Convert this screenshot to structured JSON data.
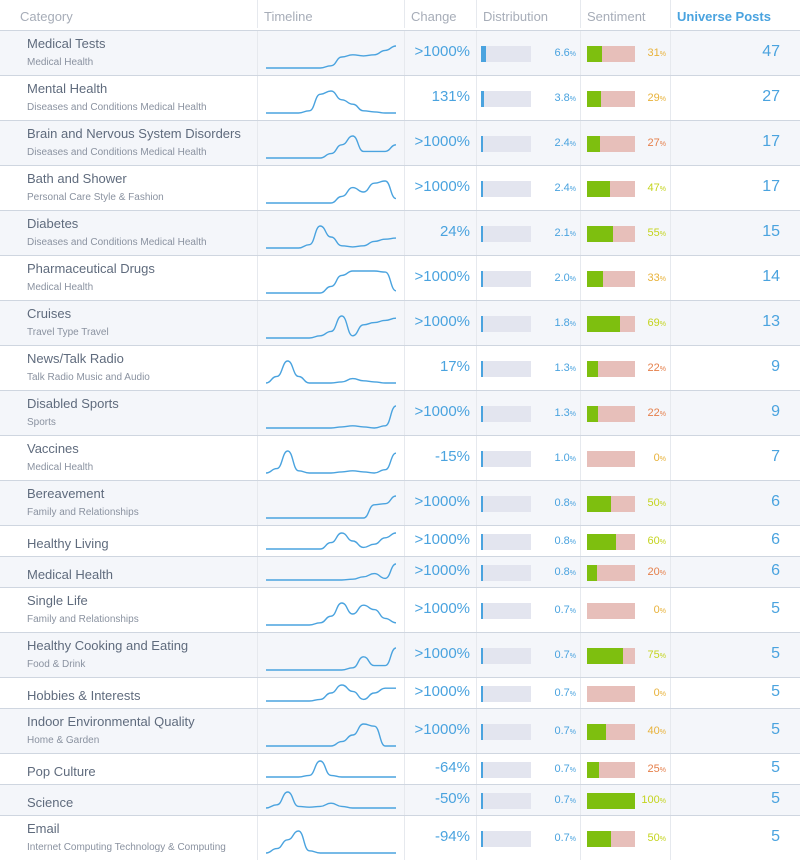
{
  "header": {
    "category": "Category",
    "timeline": "Timeline",
    "change": "Change",
    "distribution": "Distribution",
    "sentiment": "Sentiment",
    "universe_posts": "Universe Posts"
  },
  "colors": {
    "accent": "#4aa3df",
    "positive": "#7ebf0f",
    "negative": "#e7bfba",
    "sent_high": "#c4d41e",
    "sent_mid": "#e8b23a",
    "sent_low": "#e57f4a"
  },
  "rows": [
    {
      "name": "Medical Tests",
      "sub": "Medical Health",
      "change": ">1000%",
      "dist": "6.6",
      "dist_value": 6.6,
      "sent": "31",
      "sent_value": 31,
      "posts": "47",
      "spark": [
        0,
        0,
        0,
        0,
        0,
        0,
        0.1,
        0.5,
        0.6,
        0.55,
        0.6,
        0.8,
        1.0
      ]
    },
    {
      "name": "Mental Health",
      "sub": "Diseases and Conditions Medical Health",
      "change": "131%",
      "dist": "3.8",
      "dist_value": 3.8,
      "sent": "29",
      "sent_value": 29,
      "posts": "27",
      "spark": [
        0,
        0,
        0,
        0,
        0.1,
        0.85,
        1.0,
        0.6,
        0.4,
        0.1,
        0.05,
        0,
        0
      ]
    },
    {
      "name": "Brain and Nervous System Disorders",
      "sub": "Diseases and Conditions Medical Health",
      "change": ">1000%",
      "dist": "2.4",
      "dist_value": 2.4,
      "sent": "27",
      "sent_value": 27,
      "posts": "17",
      "spark": [
        0,
        0,
        0,
        0,
        0,
        0,
        0.2,
        0.6,
        1.0,
        0.3,
        0.3,
        0.3,
        0.6
      ]
    },
    {
      "name": "Bath and Shower",
      "sub": "Personal Care Style & Fashion",
      "change": ">1000%",
      "dist": "2.4",
      "dist_value": 2.4,
      "sent": "47",
      "sent_value": 47,
      "posts": "17",
      "spark": [
        0,
        0,
        0,
        0,
        0,
        0,
        0,
        0.3,
        0.7,
        0.5,
        0.9,
        1.0,
        0.2
      ]
    },
    {
      "name": "Diabetes",
      "sub": "Diseases and Conditions Medical Health",
      "change": "24%",
      "dist": "2.1",
      "dist_value": 2.1,
      "sent": "55",
      "sent_value": 55,
      "posts": "15",
      "spark": [
        0,
        0,
        0,
        0,
        0.15,
        1.0,
        0.5,
        0.1,
        0.05,
        0.1,
        0.3,
        0.4,
        0.45
      ]
    },
    {
      "name": "Pharmaceutical Drugs",
      "sub": "Medical Health",
      "change": ">1000%",
      "dist": "2.0",
      "dist_value": 2.0,
      "sent": "33",
      "sent_value": 33,
      "posts": "14",
      "spark": [
        0,
        0,
        0,
        0,
        0,
        0,
        0.3,
        0.8,
        1.0,
        1.0,
        1.0,
        0.95,
        0.1
      ]
    },
    {
      "name": "Cruises",
      "sub": "Travel Type Travel",
      "change": ">1000%",
      "dist": "1.8",
      "dist_value": 1.8,
      "sent": "69",
      "sent_value": 69,
      "posts": "13",
      "spark": [
        0,
        0,
        0,
        0,
        0,
        0.1,
        0.3,
        1.0,
        0.1,
        0.6,
        0.7,
        0.8,
        0.9
      ]
    },
    {
      "name": "News/Talk Radio",
      "sub": "Talk Radio Music and Audio",
      "change": "17%",
      "dist": "1.3",
      "dist_value": 1.3,
      "sent": "22",
      "sent_value": 22,
      "posts": "9",
      "spark": [
        0,
        0.3,
        1.0,
        0.3,
        0,
        0,
        0,
        0.05,
        0.2,
        0.1,
        0.05,
        0,
        0
      ]
    },
    {
      "name": "Disabled Sports",
      "sub": "Sports",
      "change": ">1000%",
      "dist": "1.3",
      "dist_value": 1.3,
      "sent": "22",
      "sent_value": 22,
      "posts": "9",
      "spark": [
        0,
        0,
        0,
        0,
        0,
        0,
        0,
        0.05,
        0.1,
        0.05,
        0,
        0.1,
        1.0
      ]
    },
    {
      "name": "Vaccines",
      "sub": "Medical Health",
      "change": "-15%",
      "dist": "1.0",
      "dist_value": 1.0,
      "sent": "0",
      "sent_value": 0,
      "posts": "7",
      "spark": [
        0,
        0.2,
        1.0,
        0.1,
        0,
        0,
        0,
        0.05,
        0.1,
        0.05,
        0,
        0.15,
        0.9
      ]
    },
    {
      "name": "Bereavement",
      "sub": "Family and Relationships",
      "change": ">1000%",
      "dist": "0.8",
      "dist_value": 0.8,
      "sent": "50",
      "sent_value": 50,
      "posts": "6",
      "spark": [
        0,
        0,
        0,
        0,
        0,
        0,
        0,
        0,
        0,
        0,
        0.6,
        0.65,
        1.0
      ]
    },
    {
      "name": "Healthy Living",
      "sub": "",
      "change": ">1000%",
      "dist": "0.8",
      "dist_value": 0.8,
      "sent": "60",
      "sent_value": 60,
      "posts": "6",
      "spark": [
        0,
        0,
        0,
        0,
        0,
        0,
        0.4,
        1.0,
        0.5,
        0.1,
        0.3,
        0.7,
        1.0
      ]
    },
    {
      "name": "Medical Health",
      "sub": "",
      "change": ">1000%",
      "dist": "0.8",
      "dist_value": 0.8,
      "sent": "20",
      "sent_value": 20,
      "posts": "6",
      "spark": [
        0,
        0,
        0,
        0,
        0,
        0,
        0,
        0,
        0.05,
        0.2,
        0.4,
        0.1,
        1.0
      ]
    },
    {
      "name": "Single Life",
      "sub": "Family and Relationships",
      "change": ">1000%",
      "dist": "0.7",
      "dist_value": 0.7,
      "sent": "0",
      "sent_value": 0,
      "posts": "5",
      "spark": [
        0,
        0,
        0,
        0,
        0,
        0.1,
        0.4,
        1.0,
        0.5,
        0.9,
        0.7,
        0.3,
        0.1
      ]
    },
    {
      "name": "Healthy Cooking and Eating",
      "sub": "Food & Drink",
      "change": ">1000%",
      "dist": "0.7",
      "dist_value": 0.7,
      "sent": "75",
      "sent_value": 75,
      "posts": "5",
      "spark": [
        0,
        0,
        0,
        0,
        0,
        0,
        0,
        0,
        0.1,
        0.6,
        0.2,
        0.2,
        1.0
      ]
    },
    {
      "name": "Hobbies & Interests",
      "sub": "",
      "change": ">1000%",
      "dist": "0.7",
      "dist_value": 0.7,
      "sent": "0",
      "sent_value": 0,
      "posts": "5",
      "spark": [
        0,
        0,
        0,
        0,
        0,
        0.1,
        0.5,
        1.0,
        0.6,
        0.1,
        0.5,
        0.8,
        0.8
      ]
    },
    {
      "name": "Indoor Environmental Quality",
      "sub": "Home & Garden",
      "change": ">1000%",
      "dist": "0.7",
      "dist_value": 0.7,
      "sent": "40",
      "sent_value": 40,
      "posts": "5",
      "spark": [
        0,
        0,
        0,
        0,
        0,
        0,
        0,
        0.2,
        0.5,
        1.0,
        0.9,
        0,
        0
      ]
    },
    {
      "name": "Pop Culture",
      "sub": "",
      "change": "-64%",
      "dist": "0.7",
      "dist_value": 0.7,
      "sent": "25",
      "sent_value": 25,
      "posts": "5",
      "spark": [
        0,
        0,
        0,
        0,
        0.1,
        1.0,
        0.1,
        0,
        0,
        0,
        0,
        0,
        0
      ]
    },
    {
      "name": "Science",
      "sub": "",
      "change": "-50%",
      "dist": "0.7",
      "dist_value": 0.7,
      "sent": "100",
      "sent_value": 100,
      "posts": "5",
      "spark": [
        0,
        0.2,
        1.0,
        0.1,
        0.05,
        0.1,
        0.3,
        0.1,
        0,
        0,
        0,
        0,
        0
      ]
    },
    {
      "name": "Email",
      "sub": "Internet Computing Technology & Computing",
      "change": "-94%",
      "dist": "0.7",
      "dist_value": 0.7,
      "sent": "50",
      "sent_value": 50,
      "posts": "5",
      "spark": [
        0,
        0.2,
        0.6,
        1.0,
        0.1,
        0,
        0,
        0,
        0,
        0,
        0,
        0,
        0
      ]
    }
  ]
}
